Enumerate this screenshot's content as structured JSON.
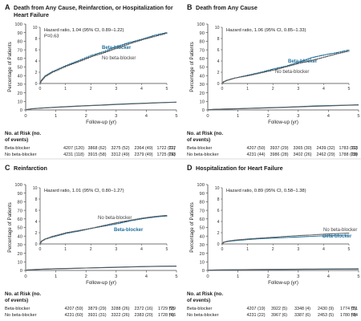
{
  "colors": {
    "beta_blocker": "#1f6f9a",
    "no_beta_blocker": "#5a5a5a",
    "inset_bg": "#ffffff",
    "axis": "#444444"
  },
  "labels": {
    "ylabel": "Percentage of Patients",
    "xlabel": "Follow-up (yr)",
    "risk_title_1": "No. at Risk (no.",
    "risk_title_2": "of events)"
  },
  "chart_data": [
    {
      "type": "line",
      "panel_letter": "A",
      "title_lines": [
        "Death from Any Cause, Reinfarction, or Hospitalization for",
        "Heart Failure"
      ],
      "annotation_lines": [
        "Hazard ratio, 1.04 (95% CI, 0.89–1.22)",
        "P=0.63"
      ],
      "xlabel": "Follow-up (yr)",
      "ylabel": "Percentage of Patients",
      "xlim": [
        0,
        5
      ],
      "ylim": [
        0,
        100
      ],
      "x_ticks": [
        "0",
        "1",
        "2",
        "3",
        "4",
        "5"
      ],
      "y_ticks": [
        "0",
        "10",
        "20",
        "30",
        "40",
        "50",
        "60",
        "70",
        "80",
        "90",
        "100"
      ],
      "inset": {
        "xlim": [
          0,
          5
        ],
        "ylim": [
          0,
          10
        ],
        "x_ticks": [
          "0",
          "1",
          "2",
          "3",
          "4",
          "5"
        ],
        "y_ticks": [
          "0",
          "2",
          "4",
          "6",
          "8",
          "10"
        ]
      },
      "series": [
        {
          "name": "Beta-blocker",
          "key": "beta_blocker",
          "x": [
            0,
            0.05,
            0.2,
            0.5,
            1,
            1.5,
            2,
            2.5,
            3,
            3.5,
            4,
            4.5,
            5
          ],
          "y": [
            0,
            0.6,
            1.4,
            2.2,
            3.2,
            4.1,
            5.0,
            5.7,
            6.6,
            7.3,
            7.9,
            8.6,
            9.1
          ]
        },
        {
          "name": "No beta-blocker",
          "key": "no_beta_blocker",
          "x": [
            0,
            0.05,
            0.2,
            0.5,
            1,
            1.5,
            2,
            2.5,
            3,
            3.5,
            4,
            4.5,
            5
          ],
          "y": [
            0,
            0.5,
            1.3,
            2.1,
            3.1,
            3.9,
            4.8,
            5.5,
            6.3,
            7.1,
            7.8,
            8.4,
            9.0
          ]
        }
      ],
      "risk_rows": [
        {
          "label": "Beta-blocker",
          "cells": [
            "4207 (120)",
            "3868 (62)",
            "3275 (52)",
            "2364 (49)",
            "1722 (21)",
            "727"
          ]
        },
        {
          "label": "No beta-blocker",
          "cells": [
            "4231 (118)",
            "3915 (58)",
            "3312 (49)",
            "2379 (49)",
            "1725 (24)",
            "713"
          ]
        }
      ]
    },
    {
      "type": "line",
      "panel_letter": "B",
      "title_lines": [
        "Death from Any Cause"
      ],
      "annotation_lines": [
        "Hazard ratio, 1.06 (95% CI, 0.85–1.33)"
      ],
      "xlabel": "Follow-up (yr)",
      "ylabel": "Percentage of Patients",
      "xlim": [
        0,
        5
      ],
      "ylim": [
        0,
        100
      ],
      "x_ticks": [
        "0",
        "1",
        "2",
        "3",
        "4",
        "5"
      ],
      "y_ticks": [
        "0",
        "10",
        "20",
        "30",
        "40",
        "50",
        "60",
        "70",
        "80",
        "90",
        "100"
      ],
      "inset": {
        "xlim": [
          0,
          5
        ],
        "ylim": [
          0,
          10
        ],
        "x_ticks": [
          "0",
          "1",
          "2",
          "3",
          "4",
          "5"
        ],
        "y_ticks": [
          "0",
          "2",
          "4",
          "6",
          "8",
          "10"
        ]
      },
      "series": [
        {
          "name": "Beta-blocker",
          "key": "beta_blocker",
          "x": [
            0,
            0.05,
            0.2,
            0.5,
            1,
            1.5,
            2,
            2.5,
            3,
            3.5,
            4,
            4.5,
            5
          ],
          "y": [
            0,
            0.3,
            0.6,
            1.0,
            1.5,
            2.0,
            2.6,
            3.1,
            3.8,
            4.6,
            5.1,
            5.5,
            6.0
          ]
        },
        {
          "name": "No beta-blocker",
          "key": "no_beta_blocker",
          "x": [
            0,
            0.05,
            0.2,
            0.5,
            1,
            1.5,
            2,
            2.5,
            3,
            3.5,
            4,
            4.5,
            5
          ],
          "y": [
            0,
            0.3,
            0.6,
            1.0,
            1.4,
            1.9,
            2.4,
            3.0,
            3.6,
            4.1,
            4.7,
            5.3,
            5.8
          ]
        }
      ],
      "risk_rows": [
        {
          "label": "Beta-blocker",
          "cells": [
            "4207 (50)",
            "3937 (29)",
            "3365 (30)",
            "2439 (32)",
            "1783 (12)",
            "753"
          ]
        },
        {
          "label": "No beta-blocker",
          "cells": [
            "4231 (44)",
            "3986 (28)",
            "3402 (26)",
            "2462 (29)",
            "1788 (20)",
            "739"
          ]
        }
      ]
    },
    {
      "type": "line",
      "panel_letter": "C",
      "title_lines": [
        "Reinfarction"
      ],
      "annotation_lines": [
        "Hazard ratio, 1.01 (95% CI, 0.80–1.27)"
      ],
      "xlabel": "Follow-up (yr)",
      "ylabel": "Percentage of Patients",
      "xlim": [
        0,
        5
      ],
      "ylim": [
        0,
        100
      ],
      "x_ticks": [
        "0",
        "1",
        "2",
        "3",
        "4",
        "5"
      ],
      "y_ticks": [
        "0",
        "10",
        "20",
        "30",
        "40",
        "50",
        "60",
        "70",
        "80",
        "90",
        "100"
      ],
      "inset": {
        "xlim": [
          0,
          5
        ],
        "ylim": [
          0,
          10
        ],
        "x_ticks": [
          "0",
          "1",
          "2",
          "3",
          "4",
          "5"
        ],
        "y_ticks": [
          "0",
          "2",
          "4",
          "6",
          "8",
          "10"
        ]
      },
      "series": [
        {
          "name": "Beta-blocker",
          "key": "beta_blocker",
          "x": [
            0,
            0.05,
            0.2,
            0.5,
            1,
            1.5,
            2,
            2.5,
            3,
            3.5,
            4,
            4.5,
            5
          ],
          "y": [
            0,
            0.5,
            0.9,
            1.3,
            1.9,
            2.3,
            2.8,
            3.2,
            3.6,
            4.1,
            4.5,
            4.8,
            5.0
          ]
        },
        {
          "name": "No beta-blocker",
          "key": "no_beta_blocker",
          "x": [
            0,
            0.05,
            0.2,
            0.5,
            1,
            1.5,
            2,
            2.5,
            3,
            3.5,
            4,
            4.5,
            5
          ],
          "y": [
            0,
            0.5,
            0.9,
            1.4,
            2.0,
            2.4,
            2.8,
            3.3,
            3.8,
            4.2,
            4.6,
            4.9,
            5.1
          ]
        }
      ],
      "risk_rows": [
        {
          "label": "Beta-blocker",
          "cells": [
            "4207 (59)",
            "3879 (29)",
            "3288 (26)",
            "2372 (16)",
            "1729 (9)",
            "729"
          ]
        },
        {
          "label": "No beta-blocker",
          "cells": [
            "4231 (60)",
            "3931 (31)",
            "3322 (26)",
            "2383 (20)",
            "1728 (4)",
            "716"
          ]
        }
      ]
    },
    {
      "type": "line",
      "panel_letter": "D",
      "title_lines": [
        "Hospitalization for Heart Failure"
      ],
      "annotation_lines": [
        "Hazard ratio, 0.89 (95% CI, 0.58–1.38)"
      ],
      "xlabel": "Follow-up (yr)",
      "ylabel": "Percentage of Patients",
      "xlim": [
        0,
        5
      ],
      "ylim": [
        0,
        100
      ],
      "x_ticks": [
        "0",
        "1",
        "2",
        "3",
        "4",
        "5"
      ],
      "y_ticks": [
        "0",
        "10",
        "20",
        "30",
        "40",
        "50",
        "60",
        "70",
        "80",
        "90",
        "100"
      ],
      "inset": {
        "xlim": [
          0,
          5
        ],
        "ylim": [
          0,
          10
        ],
        "x_ticks": [
          "0",
          "1",
          "2",
          "3",
          "4",
          "5"
        ],
        "y_ticks": [
          "0",
          "2",
          "4",
          "6",
          "8",
          "10"
        ]
      },
      "series": [
        {
          "name": "Beta-blocker",
          "key": "beta_blocker",
          "x": [
            0,
            0.05,
            0.2,
            0.5,
            1,
            1.5,
            2,
            2.5,
            3,
            3.5,
            4,
            4.5,
            5
          ],
          "y": [
            0,
            0.3,
            0.45,
            0.6,
            0.8,
            0.95,
            1.05,
            1.15,
            1.25,
            1.35,
            1.45,
            1.55,
            1.6
          ]
        },
        {
          "name": "No beta-blocker",
          "key": "no_beta_blocker",
          "x": [
            0,
            0.05,
            0.2,
            0.5,
            1,
            1.5,
            2,
            2.5,
            3,
            3.5,
            4,
            4.5,
            5
          ],
          "y": [
            0,
            0.3,
            0.5,
            0.7,
            0.9,
            1.05,
            1.2,
            1.35,
            1.5,
            1.6,
            1.75,
            1.85,
            1.95
          ]
        }
      ],
      "risk_rows": [
        {
          "label": "Beta-blocker",
          "cells": [
            "4207 (19)",
            "3922 (5)",
            "3348 (4)",
            "2430 (9)",
            "1774 (2)",
            "751"
          ]
        },
        {
          "label": "No beta-blocker",
          "cells": [
            "4231 (22)",
            "3967 (6)",
            "3387 (6)",
            "2453 (5)",
            "1780 (4)",
            "734"
          ]
        }
      ]
    }
  ]
}
